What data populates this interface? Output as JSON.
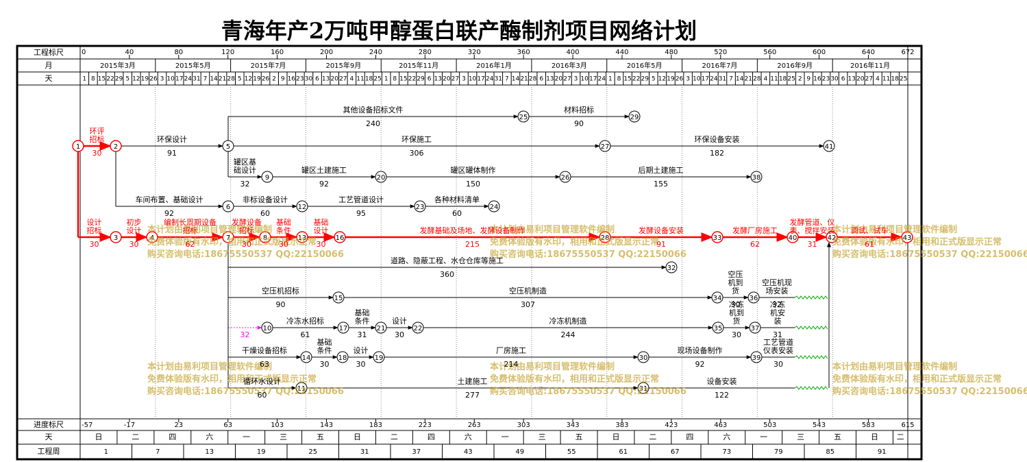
{
  "title": "青海年产2万吨甲醇蛋白联产酶制剂项目网络计划",
  "header": {
    "ruler_label": "工程标尺",
    "ruler_ticks": [
      0,
      40,
      80,
      120,
      160,
      200,
      240,
      280,
      320,
      360,
      400,
      440,
      480,
      520,
      560,
      600,
      640,
      672
    ],
    "month_label": "月",
    "months": [
      "2015年3月",
      "2015年5月",
      "2015年7月",
      "2015年9月",
      "2015年11月",
      "2016年1月",
      "2016年3月",
      "2016年5月",
      "2016年7月",
      "2016年9月",
      "2016年11月"
    ],
    "day_label": "天",
    "days": [
      1,
      8,
      15,
      22,
      29,
      5,
      12,
      19,
      26,
      3,
      10,
      17,
      24,
      31,
      7,
      14,
      21,
      28,
      5,
      12,
      19,
      26,
      2,
      9,
      16,
      23,
      30,
      6,
      13,
      20,
      27,
      4,
      11,
      18,
      25,
      1,
      8,
      15,
      22,
      29,
      6,
      13,
      20,
      27,
      3,
      10,
      17,
      24,
      31,
      7,
      14,
      21,
      28,
      6,
      13,
      20,
      27,
      3,
      10,
      17,
      24,
      1,
      8,
      15,
      22,
      29,
      5,
      12,
      19,
      26,
      3,
      10,
      17,
      24,
      31,
      7,
      14,
      21,
      28,
      4,
      11,
      18,
      25,
      2,
      9,
      16,
      23,
      30,
      6,
      13,
      20,
      27,
      4,
      11,
      18,
      25
    ]
  },
  "footer": {
    "progress_label": "进度标尺",
    "progress_ticks": [
      -57,
      -17,
      23,
      63,
      103,
      143,
      183,
      223,
      263,
      303,
      343,
      383,
      423,
      463,
      503,
      543,
      583,
      615
    ],
    "weekday_label": "天",
    "weekdays": [
      "日",
      "二",
      "四",
      "六",
      "一",
      "三",
      "五",
      "日",
      "二",
      "四",
      "六",
      "一",
      "三",
      "五",
      "日",
      "二",
      "四",
      "六",
      "一",
      "三",
      "五",
      "日",
      "二"
    ],
    "week_label": "工程周",
    "weeks": [
      1,
      7,
      13,
      19,
      25,
      31,
      37,
      43,
      49,
      55,
      61,
      67,
      73,
      79,
      85,
      91
    ]
  },
  "nodes": [
    1,
    2,
    3,
    4,
    5,
    6,
    7,
    8,
    9,
    10,
    11,
    12,
    13,
    14,
    15,
    16,
    17,
    18,
    19,
    20,
    21,
    22,
    23,
    24,
    25,
    26,
    27,
    28,
    29,
    30,
    31,
    32,
    33,
    34,
    35,
    36,
    37,
    38,
    39,
    40,
    41,
    42,
    43
  ],
  "activities": [
    {
      "name": "环评招标",
      "duration": 30
    },
    {
      "name": "环保设计",
      "duration": 91
    },
    {
      "name": "车间布置、基础设计",
      "duration": 92
    },
    {
      "name": "设计招标",
      "duration": 30
    },
    {
      "name": "初步设计",
      "duration": 30
    },
    {
      "name": "编制长周期设备招标",
      "duration": 62
    },
    {
      "name": "其他设备招标文件",
      "duration": 240
    },
    {
      "name": "材料招标",
      "duration": 90
    },
    {
      "name": "环保施工",
      "duration": 306
    },
    {
      "name": "环保设备安装",
      "duration": 182
    },
    {
      "name": "罐区基础设计",
      "duration": 32
    },
    {
      "name": "罐区土建施工",
      "duration": 92
    },
    {
      "name": "罐区罐体制作",
      "duration": 150
    },
    {
      "name": "后期土建施工",
      "duration": 155
    },
    {
      "name": "非标设备设计",
      "duration": 60
    },
    {
      "name": "工艺管道设计",
      "duration": 95
    },
    {
      "name": "各种材料清单",
      "duration": 60
    },
    {
      "name": "发酵设备招标",
      "duration": 30
    },
    {
      "name": "基础条件",
      "duration": 30
    },
    {
      "name": "基础设计",
      "duration": 30
    },
    {
      "name": "发酵基础及场地、发酵设备制作",
      "duration": 215
    },
    {
      "name": "发酵设备安装",
      "duration": 91
    },
    {
      "name": "发酵厂房施工",
      "duration": 62
    },
    {
      "name": "发酵管道、仪表、搅拌安装",
      "duration": 31
    },
    {
      "name": "调试、试车",
      "duration": 61
    },
    {
      "name": "道路、隐蔽工程、水仓仓库等施工",
      "duration": 360
    },
    {
      "name": "空压机招标",
      "duration": 90
    },
    {
      "name": "空压机制造",
      "duration": 307
    },
    {
      "name": "空压机到货",
      "duration": 30
    },
    {
      "name": "空压机现场安装",
      "duration": 32
    },
    {
      "duration": 32
    },
    {
      "name": "冷冻水招标",
      "duration": 61
    },
    {
      "name": "基础条件",
      "duration": 31
    },
    {
      "name": "设计",
      "duration": 30
    },
    {
      "name": "冷冻机制造",
      "duration": 244
    },
    {
      "name": "冷冻机到货",
      "duration": 30
    },
    {
      "name": "冷冻机安装",
      "duration": 31
    },
    {
      "name": "干燥设备招标",
      "duration": 63
    },
    {
      "name": "基础条件",
      "duration": 30
    },
    {
      "name": "设计",
      "duration": 30
    },
    {
      "name": "厂房施工",
      "duration": 214
    },
    {
      "name": "现场设备制作",
      "duration": 92
    },
    {
      "name": "工艺管道仪表安装",
      "duration": 30
    },
    {
      "name": "循环水设计",
      "duration": 60
    },
    {
      "name": "土建施工",
      "duration": 277
    },
    {
      "name": "设备安装",
      "duration": 122
    }
  ],
  "watermark": [
    "本计划由易利项目管理软件编制",
    "免费体验版有水印，相用和正式版显示正常",
    "购买咨询电话:18675550537 QQ:22150066"
  ]
}
